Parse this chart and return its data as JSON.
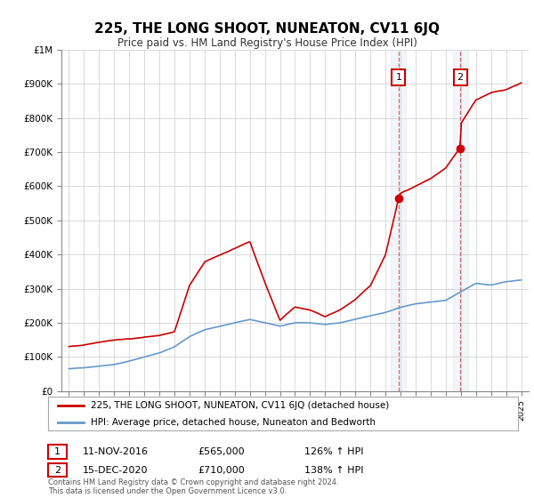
{
  "title": "225, THE LONG SHOOT, NUNEATON, CV11 6JQ",
  "subtitle": "Price paid vs. HM Land Registry's House Price Index (HPI)",
  "legend_line1": "225, THE LONG SHOOT, NUNEATON, CV11 6JQ (detached house)",
  "legend_line2": "HPI: Average price, detached house, Nuneaton and Bedworth",
  "annotation1_label": "1",
  "annotation1_date": "11-NOV-2016",
  "annotation1_price": "£565,000",
  "annotation1_hpi": "126% ↑ HPI",
  "annotation1_year": 2016.87,
  "annotation1_value": 565000,
  "annotation2_label": "2",
  "annotation2_date": "15-DEC-2020",
  "annotation2_price": "£710,000",
  "annotation2_hpi": "138% ↑ HPI",
  "annotation2_year": 2020.96,
  "annotation2_value": 710000,
  "footnote": "Contains HM Land Registry data © Crown copyright and database right 2024.\nThis data is licensed under the Open Government Licence v3.0.",
  "red_color": "#cc0000",
  "blue_color": "#6699cc",
  "grid_color": "#cccccc",
  "background_color": "#ffffff",
  "annotation_box_color": "#cc0000",
  "vline_color": "#cc6666",
  "shade_color": "#ccddf0",
  "hpi_keypoints": [
    [
      1995,
      65000
    ],
    [
      1996,
      68000
    ],
    [
      1997,
      73000
    ],
    [
      1998,
      78000
    ],
    [
      1999,
      88000
    ],
    [
      2000,
      100000
    ],
    [
      2001,
      112000
    ],
    [
      2002,
      130000
    ],
    [
      2003,
      160000
    ],
    [
      2004,
      180000
    ],
    [
      2005,
      190000
    ],
    [
      2006,
      200000
    ],
    [
      2007,
      210000
    ],
    [
      2008,
      200000
    ],
    [
      2009,
      190000
    ],
    [
      2010,
      200000
    ],
    [
      2011,
      200000
    ],
    [
      2012,
      195000
    ],
    [
      2013,
      200000
    ],
    [
      2014,
      210000
    ],
    [
      2015,
      220000
    ],
    [
      2016,
      230000
    ],
    [
      2017,
      245000
    ],
    [
      2018,
      255000
    ],
    [
      2019,
      260000
    ],
    [
      2020,
      265000
    ],
    [
      2021,
      290000
    ],
    [
      2022,
      315000
    ],
    [
      2023,
      310000
    ],
    [
      2024,
      320000
    ],
    [
      2025,
      325000
    ]
  ],
  "red_keypoints": [
    [
      1995,
      130000
    ],
    [
      1996,
      135000
    ],
    [
      1997,
      145000
    ],
    [
      1998,
      152000
    ],
    [
      1999,
      155000
    ],
    [
      2000,
      160000
    ],
    [
      2001,
      165000
    ],
    [
      2002,
      175000
    ],
    [
      2003,
      310000
    ],
    [
      2004,
      380000
    ],
    [
      2005,
      400000
    ],
    [
      2006,
      420000
    ],
    [
      2007,
      440000
    ],
    [
      2008,
      320000
    ],
    [
      2009,
      210000
    ],
    [
      2010,
      250000
    ],
    [
      2011,
      240000
    ],
    [
      2012,
      220000
    ],
    [
      2013,
      240000
    ],
    [
      2014,
      270000
    ],
    [
      2015,
      310000
    ],
    [
      2016,
      400000
    ],
    [
      2016.87,
      565000
    ],
    [
      2017,
      580000
    ],
    [
      2018,
      600000
    ],
    [
      2019,
      620000
    ],
    [
      2020,
      650000
    ],
    [
      2020.96,
      710000
    ],
    [
      2021,
      780000
    ],
    [
      2022,
      850000
    ],
    [
      2023,
      870000
    ],
    [
      2024,
      880000
    ],
    [
      2025,
      900000
    ]
  ]
}
